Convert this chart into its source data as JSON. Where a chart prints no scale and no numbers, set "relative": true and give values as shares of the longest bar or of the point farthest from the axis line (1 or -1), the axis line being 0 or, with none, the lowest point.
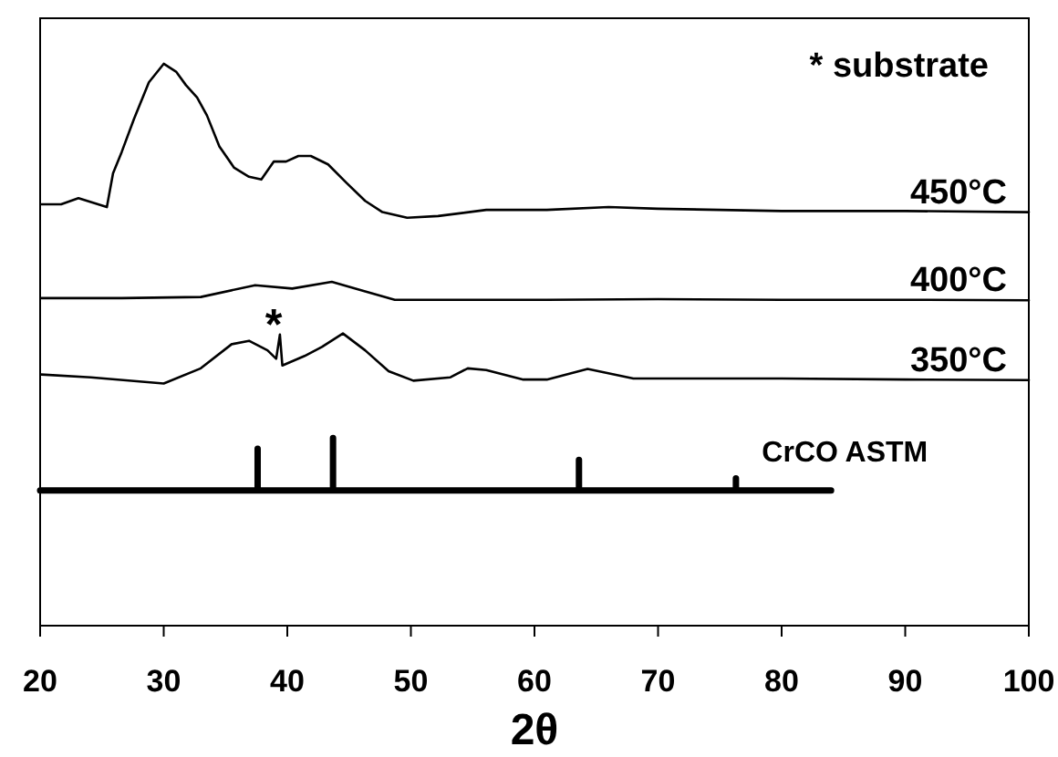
{
  "chart_data": {
    "type": "line",
    "xlabel": "2θ",
    "relative": true,
    "xlim": [
      20,
      100
    ],
    "xticks": [
      20,
      30,
      40,
      50,
      60,
      70,
      80,
      90,
      100
    ],
    "grid": false,
    "marker": "none",
    "line_style": "solid",
    "annotations": [
      "* substrate",
      "*"
    ],
    "series": [
      {
        "name": "450°C",
        "color": "#000000",
        "x": [
          20.1,
          21.7,
          23.1,
          25.4,
          25.9,
          26.6,
          27.6,
          28.8,
          30.0,
          31.0,
          31.8,
          32.7,
          33.5,
          34.5,
          35.7,
          36.9,
          37.9,
          38.9,
          39.9,
          40.9,
          41.9,
          43.3,
          44.8,
          46.3,
          47.7,
          49.7,
          52.2,
          56.1,
          58.6,
          61.0,
          66,
          70,
          80,
          90,
          100
        ],
        "values": [
          0.75,
          0.75,
          0.761,
          0.745,
          0.805,
          0.843,
          0.902,
          0.967,
          1.0,
          0.986,
          0.962,
          0.94,
          0.908,
          0.853,
          0.815,
          0.799,
          0.794,
          0.826,
          0.826,
          0.836,
          0.836,
          0.821,
          0.788,
          0.756,
          0.736,
          0.726,
          0.729,
          0.74,
          0.74,
          0.74,
          0.745,
          0.742,
          0.738,
          0.738,
          0.736
        ]
      },
      {
        "name": "400°C",
        "color": "#000000",
        "x": [
          20.1,
          26.6,
          33.0,
          37.4,
          40.4,
          43.6,
          46.3,
          48.7,
          61.0,
          70,
          80,
          90,
          100
        ],
        "values": [
          0.583,
          0.583,
          0.585,
          0.606,
          0.6,
          0.612,
          0.595,
          0.58,
          0.58,
          0.581,
          0.58,
          0.58,
          0.579
        ]
      },
      {
        "name": "350°C",
        "color": "#000000",
        "x": [
          20.1,
          24.1,
          30.0,
          33.0,
          35.5,
          36.9,
          38.4,
          39.1,
          39.4,
          39.6,
          41.4,
          42.8,
          44.5,
          46.3,
          48.2,
          50.2,
          53.2,
          54.6,
          56.1,
          59.1,
          61.0,
          64.3,
          68,
          80,
          90,
          100
        ],
        "values": [
          0.447,
          0.442,
          0.431,
          0.458,
          0.501,
          0.507,
          0.49,
          0.475,
          0.518,
          0.463,
          0.48,
          0.496,
          0.52,
          0.49,
          0.453,
          0.436,
          0.442,
          0.458,
          0.455,
          0.438,
          0.438,
          0.457,
          0.44,
          0.44,
          0.438,
          0.437
        ]
      },
      {
        "name": "CrCO ASTM",
        "color": "#000000",
        "x": [
          20,
          37.6,
          37.6,
          37.6,
          43.7,
          43.7,
          43.7,
          63.6,
          63.6,
          63.6,
          76.3,
          76.3,
          76.3,
          84
        ],
        "values": [
          0.2405,
          0.2405,
          0.315,
          0.2405,
          0.2405,
          0.334,
          0.2405,
          0.2405,
          0.295,
          0.2405,
          0.2405,
          0.262,
          0.2405,
          0.2405
        ]
      }
    ]
  }
}
